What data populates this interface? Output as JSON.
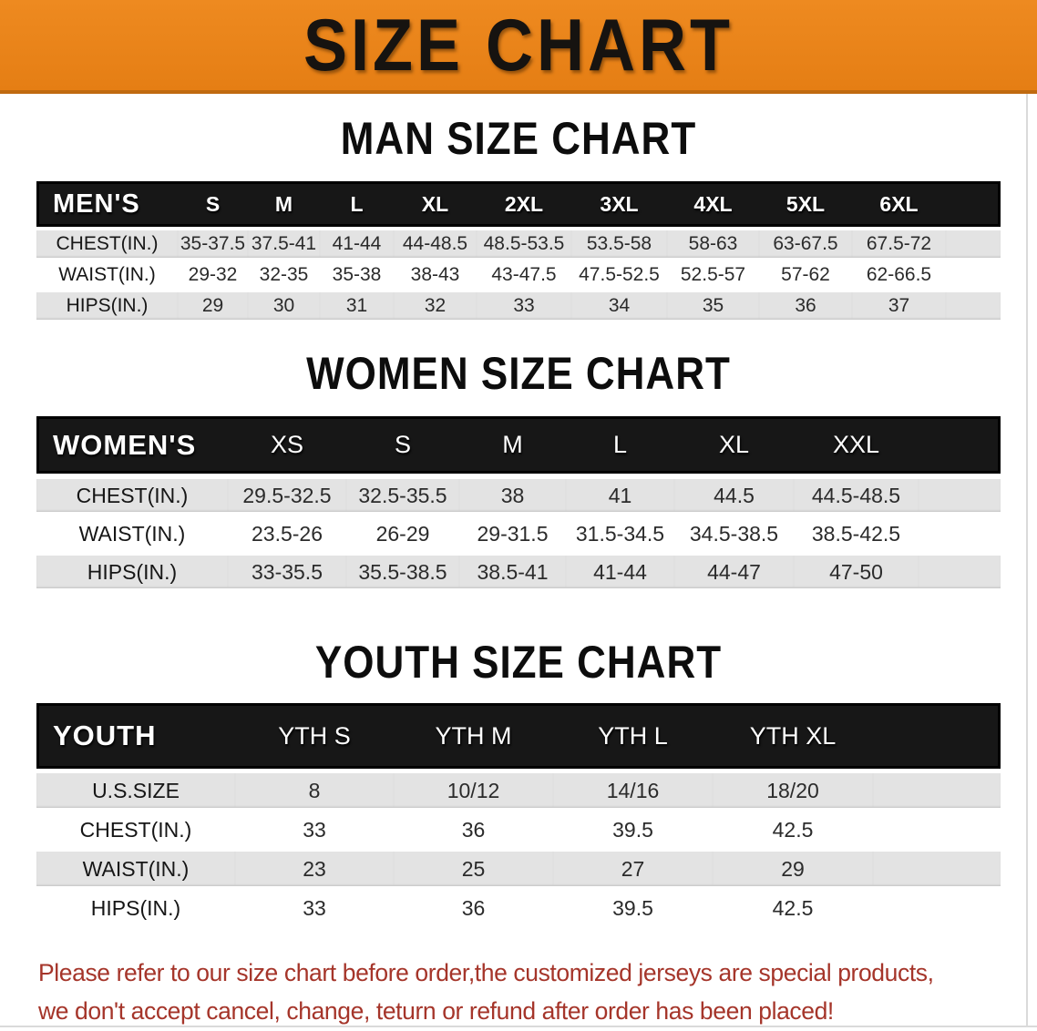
{
  "banner": {
    "title": "SIZE CHART"
  },
  "sections": [
    {
      "heading": "MAN SIZE CHART",
      "table": {
        "header": [
          "MEN'S",
          "S",
          "M",
          "L",
          "XL",
          "2XL",
          "3XL",
          "4XL",
          "5XL",
          "6XL"
        ],
        "rows": [
          {
            "label": "CHEST(IN.)",
            "values": [
              "35-37.5",
              "37.5-41",
              "41-44",
              "44-48.5",
              "48.5-53.5",
              "53.5-58",
              "58-63",
              "63-67.5",
              "67.5-72"
            ]
          },
          {
            "label": "WAIST(IN.)",
            "values": [
              "29-32",
              "32-35",
              "35-38",
              "38-43",
              "43-47.5",
              "47.5-52.5",
              "52.5-57",
              "57-62",
              "62-66.5"
            ]
          },
          {
            "label": "HIPS(IN.)",
            "values": [
              "29",
              "30",
              "31",
              "32",
              "33",
              "34",
              "35",
              "36",
              "37"
            ]
          }
        ]
      }
    },
    {
      "heading": "WOMEN SIZE CHART",
      "table": {
        "header": [
          "WOMEN'S",
          "XS",
          "S",
          "M",
          "L",
          "XL",
          "XXL"
        ],
        "rows": [
          {
            "label": "CHEST(IN.)",
            "values": [
              "29.5-32.5",
              "32.5-35.5",
              "38",
              "41",
              "44.5",
              "44.5-48.5"
            ]
          },
          {
            "label": "WAIST(IN.)",
            "values": [
              "23.5-26",
              "26-29",
              "29-31.5",
              "31.5-34.5",
              "34.5-38.5",
              "38.5-42.5"
            ]
          },
          {
            "label": "HIPS(IN.)",
            "values": [
              "33-35.5",
              "35.5-38.5",
              "38.5-41",
              "41-44",
              "44-47",
              "47-50"
            ]
          }
        ]
      }
    },
    {
      "heading": "YOUTH SIZE CHART",
      "table": {
        "header": [
          "YOUTH",
          "YTH S",
          "YTH M",
          "YTH L",
          "YTH XL"
        ],
        "rows": [
          {
            "label": "U.S.SIZE",
            "values": [
              "8",
              "10/12",
              "14/16",
              "18/20"
            ]
          },
          {
            "label": "CHEST(IN.)",
            "values": [
              "33",
              "36",
              "39.5",
              "42.5"
            ]
          },
          {
            "label": "WAIST(IN.)",
            "values": [
              "23",
              "25",
              "27",
              "29"
            ]
          },
          {
            "label": "HIPS(IN.)",
            "values": [
              "33",
              "36",
              "39.5",
              "42.5"
            ]
          }
        ]
      }
    }
  ],
  "disclaimer": {
    "line1": "Please refer to our size chart before order,the customized jerseys are special products,",
    "line2": "we don't accept cancel, change, teturn or refund after order has been placed!"
  },
  "colors": {
    "banner_orange": "#E8821C",
    "header_black": "#171717",
    "row_grey": "#E3E3E3",
    "disclaimer_red": "#A5352A"
  }
}
